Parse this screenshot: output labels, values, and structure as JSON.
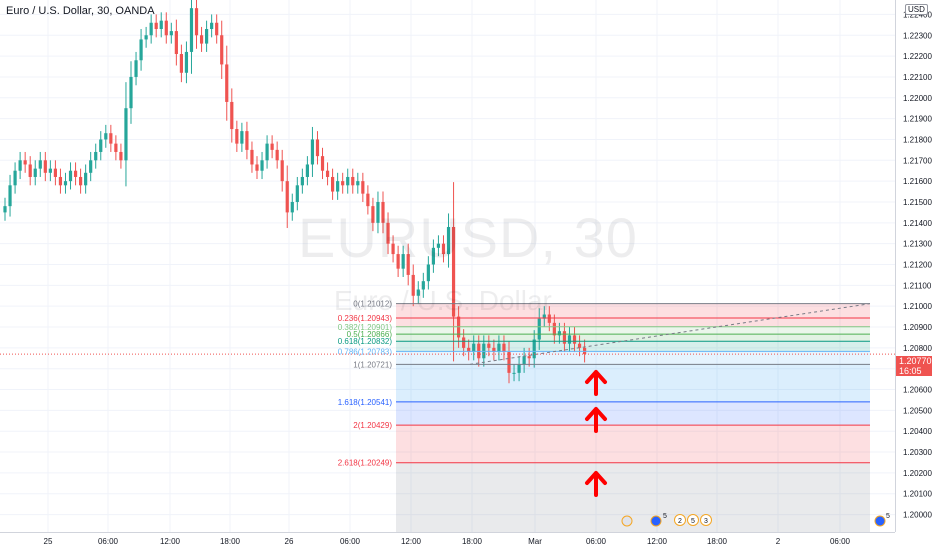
{
  "header": {
    "title": "Euro / U.S. Dollar, 30, OANDA",
    "currency_badge": "USD"
  },
  "watermark": {
    "main": "EURUSD, 30",
    "sub": "Euro / U.S. Dollar"
  },
  "last_price": {
    "value": "1.20770",
    "countdown": "16:05"
  },
  "colors": {
    "up": "#26a69a",
    "down": "#ef5350",
    "arrow": "#ff0000"
  },
  "events": {
    "badge_a": "5",
    "badge_b": "2",
    "badge_c": "5",
    "badge_d": "3",
    "badge_e": "5"
  },
  "chart_data": {
    "type": "candlestick",
    "symbol": "EURUSD",
    "timeframe": "30",
    "y_axis": {
      "range": [
        1.1995,
        1.2245
      ],
      "ticks": [
        "1.22400",
        "1.22300",
        "1.22200",
        "1.22100",
        "1.22000",
        "1.21900",
        "1.21800",
        "1.21700",
        "1.21600",
        "1.21500",
        "1.21400",
        "1.21300",
        "1.21200",
        "1.21100",
        "1.21000",
        "1.20900",
        "1.20800",
        "1.20700",
        "1.20600",
        "1.20500",
        "1.20400",
        "1.20300",
        "1.20200",
        "1.20100",
        "1.20000"
      ]
    },
    "x_axis": {
      "ticks": [
        "25",
        "06:00",
        "12:00",
        "18:00",
        "26",
        "06:00",
        "12:00",
        "18:00",
        "Mar",
        "06:00",
        "12:00",
        "18:00",
        "2",
        "06:00"
      ]
    },
    "closes": [
      1.2148,
      1.2158,
      1.2165,
      1.217,
      1.2168,
      1.2162,
      1.2166,
      1.217,
      1.2164,
      1.2166,
      1.2162,
      1.2158,
      1.216,
      1.2165,
      1.2162,
      1.2158,
      1.2164,
      1.217,
      1.2174,
      1.218,
      1.2183,
      1.2178,
      1.2174,
      1.217,
      1.2195,
      1.221,
      1.2218,
      1.2228,
      1.223,
      1.2236,
      1.2233,
      1.2237,
      1.223,
      1.2232,
      1.2221,
      1.2212,
      1.2222,
      1.2243,
      1.223,
      1.2226,
      1.2233,
      1.2236,
      1.223,
      1.2216,
      1.2198,
      1.2185,
      1.2178,
      1.2184,
      1.2175,
      1.2168,
      1.2165,
      1.217,
      1.2178,
      1.2175,
      1.217,
      1.216,
      1.2145,
      1.215,
      1.2158,
      1.2162,
      1.2168,
      1.218,
      1.2172,
      1.2165,
      1.2162,
      1.2155,
      1.216,
      1.2158,
      1.2162,
      1.2158,
      1.216,
      1.2154,
      1.2148,
      1.214,
      1.215,
      1.214,
      1.213,
      1.2125,
      1.2118,
      1.2125,
      1.2115,
      1.2105,
      1.2108,
      1.2112,
      1.212,
      1.2128,
      1.213,
      1.2125,
      1.2138,
      1.2095,
      1.2085,
      1.208,
      1.2078,
      1.2082,
      1.2075,
      1.2082,
      1.208,
      1.2078,
      1.2082,
      1.2078,
      1.2068,
      1.2068,
      1.2072,
      1.2076,
      1.2075,
      1.2084,
      1.2094,
      1.2096,
      1.2092,
      1.2086,
      1.2088,
      1.2082,
      1.2086,
      1.2082,
      1.208,
      1.2077
    ],
    "fibonacci": {
      "levels": [
        {
          "ratio": "0",
          "price": 1.21012,
          "label": "0(1.21012)",
          "color": "#787b86"
        },
        {
          "ratio": "0.236",
          "price": 1.20943,
          "label": "0.236(1.20943)",
          "color": "#f23645"
        },
        {
          "ratio": "0.382",
          "price": 1.20901,
          "label": "0.382(1.20901)",
          "color": "#81c784"
        },
        {
          "ratio": "0.5",
          "price": 1.20866,
          "label": "0.5(1.20866)",
          "color": "#4caf50"
        },
        {
          "ratio": "0.618",
          "price": 1.20832,
          "label": "0.618(1.20832)",
          "color": "#089981"
        },
        {
          "ratio": "0.786",
          "price": 1.20783,
          "label": "0.786(1.20783)",
          "color": "#64b5f6"
        },
        {
          "ratio": "1",
          "price": 1.20721,
          "label": "1(1.20721)",
          "color": "#787b86"
        },
        {
          "ratio": "1.618",
          "price": 1.20541,
          "label": "1.618(1.20541)",
          "color": "#2962ff"
        },
        {
          "ratio": "2",
          "price": 1.20429,
          "label": "2(1.20429)",
          "color": "#f23645"
        },
        {
          "ratio": "2.618",
          "price": 1.20249,
          "label": "2.618(1.20249)",
          "color": "#f23645"
        }
      ]
    },
    "last_price": 1.2077
  }
}
